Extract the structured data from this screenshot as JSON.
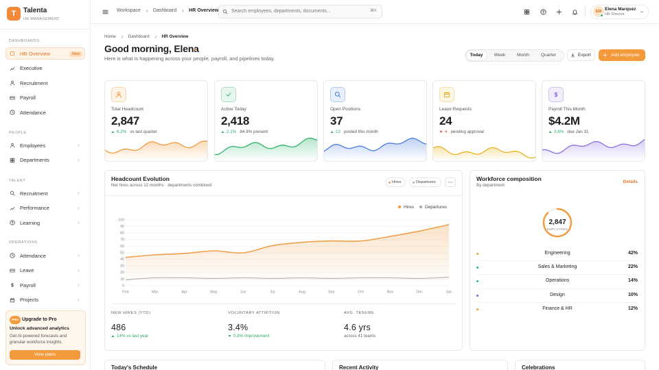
{
  "brand": {
    "logo": "T",
    "name": "Talenta",
    "tagline": "HR MANAGEMENT"
  },
  "sidebar": {
    "sections": [
      {
        "title": "DASHBOARDS",
        "items": [
          {
            "label": "HR Overview",
            "badge": "New"
          },
          {
            "label": "Executive"
          },
          {
            "label": "Recruitment"
          },
          {
            "label": "Payroll"
          },
          {
            "label": "Attendance"
          }
        ]
      },
      {
        "title": "PEOPLE",
        "items": [
          {
            "label": "Employees"
          },
          {
            "label": "Departments"
          }
        ]
      },
      {
        "title": "TALENT",
        "items": [
          {
            "label": "Recruitment"
          },
          {
            "label": "Performance"
          },
          {
            "label": "Learning"
          }
        ]
      },
      {
        "title": "OPERATIONS",
        "items": [
          {
            "label": "Attendance"
          },
          {
            "label": "Leave"
          },
          {
            "label": "Payroll"
          },
          {
            "label": "Projects"
          }
        ]
      }
    ]
  },
  "promo": {
    "badge": "PRO",
    "title": "Upgrade to Pro",
    "heading": "Unlock advanced analytics",
    "text": "Get AI-powered forecasts and granular workforce insights.",
    "button": "View plans"
  },
  "topbar": {
    "breadcrumb": [
      "Workspace",
      "Dashboard",
      "HR Overview"
    ],
    "search_placeholder": "Search employees, departments, documents...",
    "shortcut": "⌘K",
    "user": {
      "initials": "EM",
      "name": "Elena Marquez",
      "role": "HR Director"
    }
  },
  "page": {
    "breadcrumb": [
      "Home",
      "Dashboard",
      "HR Overview"
    ],
    "greeting": "Good morning, Elena",
    "subtitle": "Here is what is happening across your people, payroll, and pipelines today.",
    "tabs": [
      "Today",
      "Week",
      "Month",
      "Quarter"
    ],
    "export": "Export",
    "add": "Add employee"
  },
  "kpis": [
    {
      "label": "Total Headcount",
      "value": "2,847",
      "trend": "up",
      "delta": "6.2%",
      "note": "vs last quarter",
      "color": "#f39a3c"
    },
    {
      "label": "Active Today",
      "value": "2,418",
      "trend": "up",
      "delta": "2.1%",
      "note": "84.9% present",
      "color": "#2fb36b"
    },
    {
      "label": "Open Positions",
      "value": "37",
      "trend": "up",
      "delta": "12",
      "note": "posted this month",
      "color": "#4a7de0"
    },
    {
      "label": "Leave Requests",
      "value": "24",
      "trend": "down",
      "delta": "4",
      "note": "pending approval",
      "color": "#e9b320"
    },
    {
      "label": "Payroll This Month",
      "value": "$4.2M",
      "trend": "up",
      "delta": "3.8%",
      "note": "due Jan 31",
      "color": "#8b6fe0"
    }
  ],
  "headcount_chart": {
    "type": "line",
    "title": "Headcount Evolution",
    "subtitle": "Net hires across 12 months · departments combined",
    "categories": [
      "Feb",
      "Mar",
      "Apr",
      "May",
      "Jun",
      "Jul",
      "Aug",
      "Sep",
      "Oct",
      "Nov",
      "Dec",
      "Jan"
    ],
    "series": [
      {
        "name": "Hires",
        "color": "#f0a04b",
        "values": [
          43,
          47,
          49,
          53,
          50,
          61,
          66,
          68,
          68,
          75,
          83,
          93
        ]
      },
      {
        "name": "Departures",
        "color": "#b0b0b0",
        "values": [
          9,
          12,
          12,
          11,
          12,
          11,
          12,
          11,
          12,
          12,
          11,
          13
        ]
      }
    ],
    "ylim": [
      0,
      100
    ],
    "yticks": [
      0,
      10,
      20,
      30,
      40,
      50,
      60,
      70,
      80,
      90,
      100
    ],
    "grid": true
  },
  "stats": [
    {
      "label": "NEW HIRES (YTD)",
      "value": "486",
      "trend": "up",
      "delta": "14% vs last year"
    },
    {
      "label": "VOLUNTARY ATTRITION",
      "value": "3.4%",
      "trend": "down",
      "delta": "0.8% improvement"
    },
    {
      "label": "AVG. TENURE",
      "value": "4.6 yrs",
      "note": "across 41 teams"
    }
  ],
  "workforce": {
    "title": "Workforce composition",
    "subtitle": "By department",
    "action": "Details",
    "total": "2,847",
    "total_label": "EMPLOYEES",
    "departments": [
      {
        "name": "Engineering",
        "share": "42%",
        "color": "#f39a3c"
      },
      {
        "name": "Sales & Marketing",
        "share": "22%",
        "color": "#2fb36b"
      },
      {
        "name": "Operations",
        "share": "14%",
        "color": "#2fb36b"
      },
      {
        "name": "Design",
        "share": "10%",
        "color": "#5b6bd6"
      },
      {
        "name": "Finance & HR",
        "share": "12%",
        "color": "#f39a3c"
      }
    ]
  },
  "bottom_cards": [
    "Today's Schedule",
    "Recent Activity",
    "Celebrations"
  ]
}
